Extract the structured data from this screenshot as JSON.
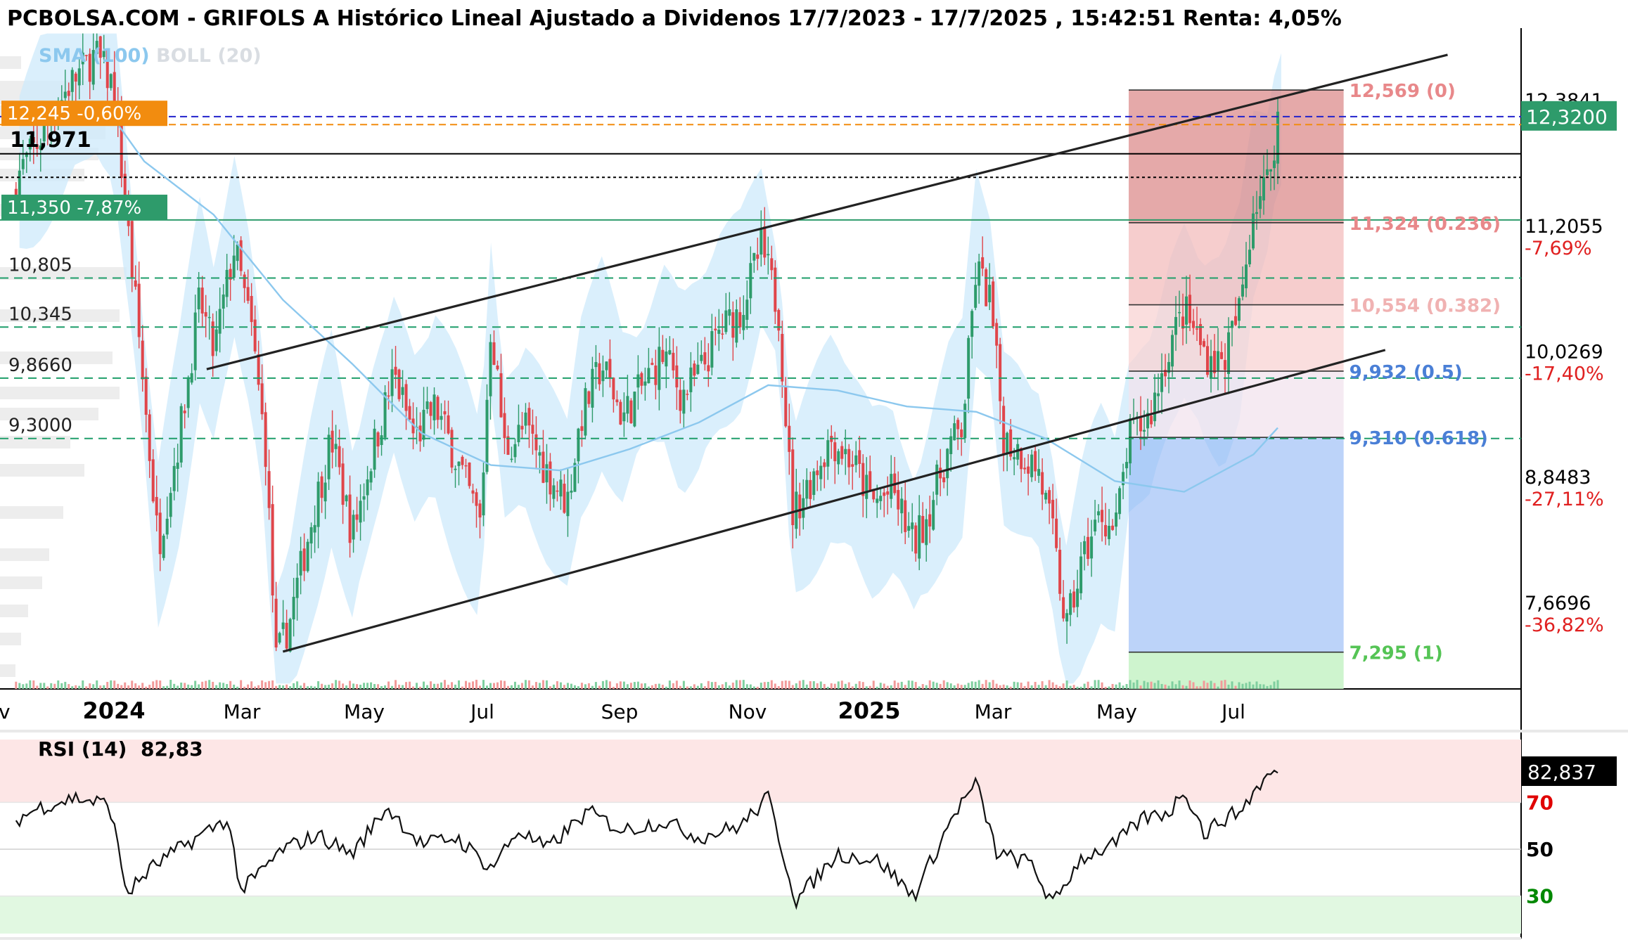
{
  "title": "PCBOLSA.COM - GRIFOLS A Histórico Lineal Ajustado a Dividenos 17/7/2023 - 17/7/2025 , 15:42:51 Renta: 4,05%",
  "legend": {
    "sma": "SMA (100)",
    "boll": "BOLL (20)"
  },
  "colors": {
    "up": "#2e9b6b",
    "down": "#e0454a",
    "sma": "#8cc8ee",
    "boll_fill": "#cde9fb",
    "trend": "#222222",
    "fib_top": "#e8a0a0",
    "fib_mid": "#f6cfcf",
    "fib_blue": "#a9c6f6",
    "support_green": "#2e9b6b",
    "current_box": "#2e9b6b",
    "orange": "#f28c0f",
    "blue_dash": "#2222cc"
  },
  "chart_data": {
    "type": "candlestick",
    "ylim": [
      6.95,
      13.15
    ],
    "x_labels": [
      {
        "label": "v",
        "bold": false
      },
      {
        "label": "2024",
        "bold": true
      },
      {
        "label": "Mar",
        "bold": false
      },
      {
        "label": "May",
        "bold": false
      },
      {
        "label": "Jul",
        "bold": false
      },
      {
        "label": "Sep",
        "bold": false
      },
      {
        "label": "Nov",
        "bold": false
      },
      {
        "label": "2025",
        "bold": true
      },
      {
        "label": "Mar",
        "bold": false
      },
      {
        "label": "May",
        "bold": false
      },
      {
        "label": "Jul",
        "bold": false
      }
    ],
    "right_axis": [
      {
        "value": 12.3841,
        "label": "12,3841",
        "pct": ""
      },
      {
        "value": 11.2055,
        "label": "11,2055",
        "pct": "-7,69%"
      },
      {
        "value": 10.0269,
        "label": "10,0269",
        "pct": "-17,40%"
      },
      {
        "value": 8.8483,
        "label": "8,8483",
        "pct": "-27,11%"
      },
      {
        "value": 7.6696,
        "label": "7,6696",
        "pct": "-36,82%"
      }
    ],
    "current_price": {
      "value": 12.32,
      "label": "12,3200"
    },
    "left_levels": [
      {
        "value": 12.245,
        "label": "12,245  -0,60%",
        "style": "orange"
      },
      {
        "value": 11.971,
        "label": "11,971",
        "style": "bold"
      },
      {
        "value": 11.35,
        "label": "11,350  -7,87%",
        "style": "green"
      },
      {
        "value": 10.805,
        "label": "10,805",
        "style": "plain"
      },
      {
        "value": 10.345,
        "label": "10,345",
        "style": "plain"
      },
      {
        "value": 9.866,
        "label": "9,8660",
        "style": "plain"
      },
      {
        "value": 9.3,
        "label": "9,3000",
        "style": "plain"
      }
    ],
    "fibonacci": [
      {
        "value": 12.569,
        "label": "12,569 (0)"
      },
      {
        "value": 11.324,
        "label": "11,324 (0.236)"
      },
      {
        "value": 10.554,
        "label": "10,554 (0.382)"
      },
      {
        "value": 9.932,
        "label": "9,932 (0.5)"
      },
      {
        "value": 9.31,
        "label": "9,310 (0.618)"
      },
      {
        "value": 7.295,
        "label": "7,295 (1)"
      }
    ],
    "price_anchors": [
      {
        "x": 0.0,
        "y": 11.6
      },
      {
        "x": 0.4,
        "y": 12.0
      },
      {
        "x": 0.9,
        "y": 12.6
      },
      {
        "x": 1.3,
        "y": 12.9
      },
      {
        "x": 1.55,
        "y": 12.6
      },
      {
        "x": 1.9,
        "y": 10.4
      },
      {
        "x": 2.2,
        "y": 8.3
      },
      {
        "x": 2.5,
        "y": 9.3
      },
      {
        "x": 2.8,
        "y": 10.6
      },
      {
        "x": 3.0,
        "y": 10.1
      },
      {
        "x": 3.3,
        "y": 11.1
      },
      {
        "x": 3.55,
        "y": 10.3
      },
      {
        "x": 3.75,
        "y": 9.2
      },
      {
        "x": 3.9,
        "y": 7.2
      },
      {
        "x": 4.1,
        "y": 7.6
      },
      {
        "x": 4.4,
        "y": 8.5
      },
      {
        "x": 4.7,
        "y": 9.3
      },
      {
        "x": 5.0,
        "y": 8.4
      },
      {
        "x": 5.3,
        "y": 9.2
      },
      {
        "x": 5.6,
        "y": 9.9
      },
      {
        "x": 5.9,
        "y": 9.3
      },
      {
        "x": 6.2,
        "y": 9.6
      },
      {
        "x": 6.5,
        "y": 9.1
      },
      {
        "x": 6.85,
        "y": 8.5
      },
      {
        "x": 7.0,
        "y": 10.4
      },
      {
        "x": 7.2,
        "y": 9.2
      },
      {
        "x": 7.5,
        "y": 9.4
      },
      {
        "x": 7.8,
        "y": 9.0
      },
      {
        "x": 8.1,
        "y": 8.7
      },
      {
        "x": 8.3,
        "y": 9.5
      },
      {
        "x": 8.6,
        "y": 10.0
      },
      {
        "x": 8.9,
        "y": 9.5
      },
      {
        "x": 9.2,
        "y": 9.8
      },
      {
        "x": 9.5,
        "y": 10.1
      },
      {
        "x": 9.75,
        "y": 9.7
      },
      {
        "x": 10.0,
        "y": 9.9
      },
      {
        "x": 10.3,
        "y": 10.3
      },
      {
        "x": 10.6,
        "y": 10.5
      },
      {
        "x": 10.9,
        "y": 11.1
      },
      {
        "x": 11.15,
        "y": 10.5
      },
      {
        "x": 11.35,
        "y": 8.6
      },
      {
        "x": 11.6,
        "y": 8.9
      },
      {
        "x": 11.9,
        "y": 9.3
      },
      {
        "x": 12.2,
        "y": 9.1
      },
      {
        "x": 12.5,
        "y": 8.7
      },
      {
        "x": 12.8,
        "y": 8.8
      },
      {
        "x": 13.1,
        "y": 8.3
      },
      {
        "x": 13.3,
        "y": 8.6
      },
      {
        "x": 13.6,
        "y": 9.2
      },
      {
        "x": 13.8,
        "y": 9.4
      },
      {
        "x": 14.0,
        "y": 10.9
      },
      {
        "x": 14.2,
        "y": 10.6
      },
      {
        "x": 14.4,
        "y": 9.3
      },
      {
        "x": 14.6,
        "y": 9.2
      },
      {
        "x": 14.9,
        "y": 9.0
      },
      {
        "x": 15.1,
        "y": 8.4
      },
      {
        "x": 15.3,
        "y": 7.5
      },
      {
        "x": 15.55,
        "y": 8.2
      },
      {
        "x": 15.8,
        "y": 8.6
      },
      {
        "x": 16.0,
        "y": 8.4
      },
      {
        "x": 16.2,
        "y": 9.3
      },
      {
        "x": 16.5,
        "y": 9.5
      },
      {
        "x": 16.8,
        "y": 10.2
      },
      {
        "x": 17.0,
        "y": 10.5
      },
      {
        "x": 17.3,
        "y": 10.1
      },
      {
        "x": 17.55,
        "y": 10.0
      },
      {
        "x": 17.8,
        "y": 10.5
      },
      {
        "x": 18.0,
        "y": 11.5
      },
      {
        "x": 18.2,
        "y": 11.7
      },
      {
        "x": 18.35,
        "y": 12.3
      }
    ],
    "sma_100": [
      {
        "x": 1.45,
        "y": 12.4
      },
      {
        "x": 2.0,
        "y": 11.9
      },
      {
        "x": 3.0,
        "y": 11.4
      },
      {
        "x": 4.0,
        "y": 10.6
      },
      {
        "x": 5.0,
        "y": 10.0
      },
      {
        "x": 6.0,
        "y": 9.35
      },
      {
        "x": 7.0,
        "y": 9.05
      },
      {
        "x": 8.0,
        "y": 9.0
      },
      {
        "x": 9.0,
        "y": 9.2
      },
      {
        "x": 10.0,
        "y": 9.45
      },
      {
        "x": 11.0,
        "y": 9.8
      },
      {
        "x": 12.0,
        "y": 9.75
      },
      {
        "x": 13.0,
        "y": 9.6
      },
      {
        "x": 14.0,
        "y": 9.55
      },
      {
        "x": 15.0,
        "y": 9.3
      },
      {
        "x": 16.0,
        "y": 8.9
      },
      {
        "x": 17.0,
        "y": 8.8
      },
      {
        "x": 18.0,
        "y": 9.15
      },
      {
        "x": 18.35,
        "y": 9.4
      }
    ],
    "trendlines": [
      {
        "x1": 2.9,
        "y1": 9.95,
        "x2": 20.8,
        "y2": 12.9
      },
      {
        "x1": 4.0,
        "y1": 7.3,
        "x2": 19.9,
        "y2": 10.13
      }
    ],
    "fib_range_x": [
      16.2,
      19.3
    ],
    "x_max": 21.86,
    "rsi": {
      "label": "RSI (14)",
      "value_text": "82,83",
      "last_label": "82,837",
      "ylim": [
        14,
        98
      ],
      "levels": [
        {
          "value": 70,
          "label": "70",
          "color": "#e00000"
        },
        {
          "value": 50,
          "label": "50",
          "color": "#000000"
        },
        {
          "value": 30,
          "label": "30",
          "color": "#008800"
        }
      ],
      "anchors": [
        {
          "x": 0.0,
          "y": 60
        },
        {
          "x": 0.5,
          "y": 68
        },
        {
          "x": 1.0,
          "y": 72
        },
        {
          "x": 1.5,
          "y": 69
        },
        {
          "x": 1.75,
          "y": 31
        },
        {
          "x": 2.1,
          "y": 42
        },
        {
          "x": 2.6,
          "y": 52
        },
        {
          "x": 3.2,
          "y": 63
        },
        {
          "x": 3.4,
          "y": 32
        },
        {
          "x": 4.0,
          "y": 50
        },
        {
          "x": 4.5,
          "y": 56
        },
        {
          "x": 5.0,
          "y": 48
        },
        {
          "x": 5.5,
          "y": 68
        },
        {
          "x": 6.0,
          "y": 52
        },
        {
          "x": 6.5,
          "y": 55
        },
        {
          "x": 7.0,
          "y": 42
        },
        {
          "x": 7.4,
          "y": 58
        },
        {
          "x": 7.8,
          "y": 50
        },
        {
          "x": 8.4,
          "y": 66
        },
        {
          "x": 8.9,
          "y": 58
        },
        {
          "x": 9.5,
          "y": 62
        },
        {
          "x": 10.0,
          "y": 55
        },
        {
          "x": 10.6,
          "y": 60
        },
        {
          "x": 11.0,
          "y": 72
        },
        {
          "x": 11.4,
          "y": 28
        },
        {
          "x": 12.0,
          "y": 48
        },
        {
          "x": 12.6,
          "y": 45
        },
        {
          "x": 13.1,
          "y": 30
        },
        {
          "x": 13.7,
          "y": 66
        },
        {
          "x": 14.0,
          "y": 78
        },
        {
          "x": 14.3,
          "y": 48
        },
        {
          "x": 14.8,
          "y": 44
        },
        {
          "x": 15.1,
          "y": 26
        },
        {
          "x": 15.5,
          "y": 46
        },
        {
          "x": 16.0,
          "y": 52
        },
        {
          "x": 16.4,
          "y": 63
        },
        {
          "x": 16.8,
          "y": 66
        },
        {
          "x": 17.0,
          "y": 76
        },
        {
          "x": 17.3,
          "y": 56
        },
        {
          "x": 17.5,
          "y": 62
        },
        {
          "x": 17.8,
          "y": 66
        },
        {
          "x": 18.1,
          "y": 78
        },
        {
          "x": 18.3,
          "y": 83
        }
      ]
    }
  }
}
